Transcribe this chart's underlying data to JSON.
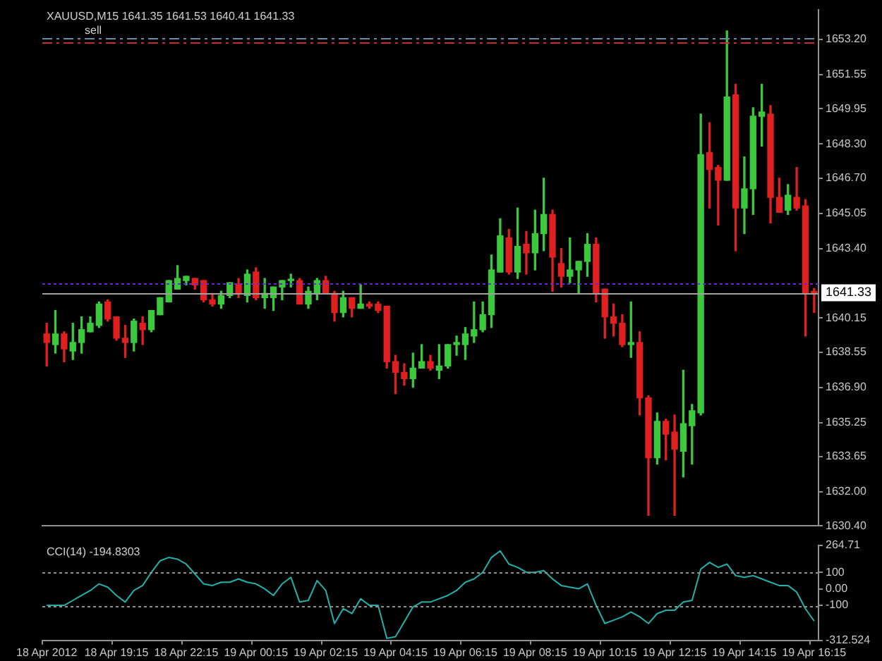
{
  "chart_data": [
    {
      "type": "candlestick",
      "title": "XAUUSD,M15 1641.35 1641.53 1640.41 1641.33",
      "annotations": [
        "sell"
      ],
      "categories": [
        null,
        null,
        null,
        null,
        null,
        null,
        null,
        null,
        null,
        null,
        null,
        null,
        null,
        null,
        null,
        null,
        null,
        null,
        null,
        null,
        null,
        null,
        null,
        null,
        null,
        null,
        null,
        null,
        null,
        null,
        null,
        null,
        null,
        null,
        null,
        null,
        null,
        null,
        null,
        null,
        null,
        null,
        null,
        null,
        null,
        null,
        null,
        null,
        null,
        null,
        null,
        null,
        null,
        null,
        null,
        null,
        null,
        null,
        null,
        null,
        null,
        null,
        null,
        null,
        null,
        null,
        null,
        null,
        null,
        null,
        null,
        null,
        null,
        null,
        null,
        null,
        null,
        null,
        null,
        null,
        null,
        null,
        null,
        null,
        null,
        null,
        null,
        null,
        null
      ],
      "ohlc": [
        [
          1639.4,
          1639.9,
          1637.9,
          1639.0
        ],
        [
          1638.9,
          1640.5,
          1638.5,
          1639.4
        ],
        [
          1639.4,
          1639.5,
          1638.1,
          1638.7
        ],
        [
          1638.6,
          1639.9,
          1638.2,
          1639.0
        ],
        [
          1639.0,
          1640.2,
          1638.5,
          1639.6
        ],
        [
          1639.5,
          1640.2,
          1639.5,
          1639.9
        ],
        [
          1639.8,
          1640.9,
          1639.7,
          1640.8
        ],
        [
          1640.9,
          1641.0,
          1640.0,
          1640.1
        ],
        [
          1640.2,
          1640.2,
          1639.1,
          1639.2
        ],
        [
          1639.2,
          1639.8,
          1638.3,
          1639.0
        ],
        [
          1639.0,
          1640.1,
          1638.6,
          1640.0
        ],
        [
          1639.9,
          1640.2,
          1638.9,
          1639.6
        ],
        [
          1639.6,
          1640.5,
          1639.5,
          1640.5
        ],
        [
          1640.3,
          1641.1,
          1640.3,
          1641.1
        ],
        [
          1640.9,
          1641.9,
          1640.9,
          1641.9
        ],
        [
          1641.5,
          1642.6,
          1641.5,
          1642.0
        ],
        [
          1641.9,
          1642.1,
          1641.7,
          1642.1
        ],
        [
          1642.0,
          1642.0,
          1641.5,
          1641.7
        ],
        [
          1641.9,
          1641.9,
          1640.9,
          1641.0
        ],
        [
          1641.0,
          1641.3,
          1640.7,
          1640.8
        ],
        [
          1640.8,
          1641.4,
          1640.6,
          1641.2
        ],
        [
          1641.2,
          1641.8,
          1641.1,
          1641.8
        ],
        [
          1641.7,
          1642.0,
          1641.1,
          1641.3
        ],
        [
          1641.2,
          1642.4,
          1640.9,
          1642.2
        ],
        [
          1642.3,
          1642.5,
          1641.0,
          1641.1
        ],
        [
          1641.1,
          1642.0,
          1640.6,
          1641.3
        ],
        [
          1641.1,
          1641.6,
          1640.5,
          1641.6
        ],
        [
          1641.6,
          1641.9,
          1641.0,
          1641.9
        ],
        [
          1641.9,
          1642.2,
          1641.6,
          1641.9
        ],
        [
          1641.9,
          1642.0,
          1640.8,
          1640.8
        ],
        [
          1640.8,
          1641.6,
          1640.6,
          1641.4
        ],
        [
          1641.3,
          1642.0,
          1641.0,
          1641.9
        ],
        [
          1641.9,
          1642.1,
          1641.3,
          1641.3
        ],
        [
          1641.3,
          1641.4,
          1640.0,
          1640.4
        ],
        [
          1640.4,
          1641.4,
          1640.2,
          1641.1
        ],
        [
          1641.1,
          1641.1,
          1640.2,
          1640.6
        ],
        [
          1640.6,
          1641.7,
          1640.6,
          1640.8
        ],
        [
          1640.8,
          1640.9,
          1640.6,
          1640.7
        ],
        [
          1640.8,
          1640.9,
          1640.4,
          1640.5
        ],
        [
          1640.7,
          1640.7,
          1637.8,
          1638.1
        ],
        [
          1638.1,
          1638.4,
          1636.6,
          1637.6
        ],
        [
          1637.6,
          1638.0,
          1637.0,
          1637.3
        ],
        [
          1637.3,
          1638.5,
          1636.9,
          1637.8
        ],
        [
          1637.8,
          1638.9,
          1637.8,
          1638.1
        ],
        [
          1638.1,
          1638.4,
          1637.7,
          1637.8
        ],
        [
          1637.7,
          1638.9,
          1637.3,
          1637.9
        ],
        [
          1637.9,
          1638.9,
          1637.8,
          1638.9
        ],
        [
          1638.9,
          1639.3,
          1638.4,
          1639.0
        ],
        [
          1638.9,
          1639.7,
          1638.2,
          1639.4
        ],
        [
          1639.3,
          1640.9,
          1639.0,
          1639.6
        ],
        [
          1639.6,
          1640.9,
          1639.5,
          1640.3
        ],
        [
          1640.3,
          1643.1,
          1639.7,
          1642.4
        ],
        [
          1642.3,
          1644.8,
          1642.3,
          1644.0
        ],
        [
          1643.9,
          1644.3,
          1642.2,
          1642.3
        ],
        [
          1642.3,
          1645.3,
          1642.0,
          1643.5
        ],
        [
          1643.6,
          1644.2,
          1642.2,
          1643.2
        ],
        [
          1643.2,
          1645.2,
          1642.4,
          1644.1
        ],
        [
          1644.1,
          1646.7,
          1643.3,
          1645.0
        ],
        [
          1645.0,
          1645.2,
          1641.4,
          1643.0
        ],
        [
          1642.7,
          1643.4,
          1641.6,
          1642.1
        ],
        [
          1642.1,
          1643.9,
          1641.8,
          1642.4
        ],
        [
          1642.4,
          1642.8,
          1641.3,
          1642.8
        ],
        [
          1642.8,
          1644.1,
          1642.1,
          1643.6
        ],
        [
          1643.6,
          1643.9,
          1640.9,
          1641.3
        ],
        [
          1641.5,
          1641.5,
          1639.2,
          1640.2
        ],
        [
          1640.2,
          1640.8,
          1639.3,
          1639.9
        ],
        [
          1639.9,
          1640.3,
          1638.8,
          1638.9
        ],
        [
          1638.9,
          1640.9,
          1638.3,
          1639.0
        ],
        [
          1639.0,
          1639.5,
          1635.6,
          1636.4
        ],
        [
          1636.4,
          1636.5,
          1630.9,
          1633.6
        ],
        [
          1633.6,
          1635.7,
          1633.3,
          1635.3
        ],
        [
          1635.3,
          1635.4,
          1633.5,
          1634.7
        ],
        [
          1634.8,
          1635.6,
          1630.9,
          1634.0
        ],
        [
          1633.9,
          1637.7,
          1632.7,
          1635.2
        ],
        [
          1635.1,
          1636.1,
          1633.3,
          1635.8
        ],
        [
          1635.7,
          1649.7,
          1635.6,
          1647.8
        ],
        [
          1647.9,
          1649.3,
          1645.3,
          1647.1
        ],
        [
          1647.2,
          1647.3,
          1644.5,
          1646.6
        ],
        [
          1646.6,
          1653.6,
          1646.6,
          1650.5
        ],
        [
          1650.6,
          1651.1,
          1643.3,
          1645.3
        ],
        [
          1645.3,
          1647.7,
          1644.1,
          1646.2
        ],
        [
          1646.2,
          1650.0,
          1645.0,
          1649.6
        ],
        [
          1649.6,
          1651.1,
          1648.2,
          1649.8
        ],
        [
          1649.7,
          1650.1,
          1644.6,
          1645.8
        ],
        [
          1645.8,
          1646.7,
          1645.1,
          1645.1
        ],
        [
          1645.2,
          1646.4,
          1645.0,
          1645.9
        ],
        [
          1645.8,
          1647.2,
          1645.2,
          1645.3
        ],
        [
          1645.4,
          1645.7,
          1639.3,
          1641.3
        ],
        [
          1641.35,
          1641.53,
          1640.41,
          1641.33
        ]
      ],
      "colors": [
        "#e02020",
        "#3cc83c",
        "#e02020",
        "#3cc83c",
        "#3cc83c",
        "#3cc83c",
        "#3cc83c",
        "#e02020",
        "#e02020",
        "#e02020",
        "#3cc83c",
        "#e02020",
        "#3cc83c",
        "#3cc83c",
        "#3cc83c",
        "#3cc83c",
        "#3cc83c",
        "#e02020",
        "#e02020",
        "#e02020",
        "#3cc83c",
        "#3cc83c",
        "#e02020",
        "#3cc83c",
        "#e02020",
        "#3cc83c",
        "#3cc83c",
        "#3cc83c",
        "#3cc83c",
        "#e02020",
        "#3cc83c",
        "#3cc83c",
        "#e02020",
        "#e02020",
        "#3cc83c",
        "#e02020",
        "#3cc83c",
        "#e02020",
        "#e02020",
        "#e02020",
        "#e02020",
        "#e02020",
        "#3cc83c",
        "#3cc83c",
        "#e02020",
        "#3cc83c",
        "#3cc83c",
        "#3cc83c",
        "#3cc83c",
        "#3cc83c",
        "#3cc83c",
        "#3cc83c",
        "#3cc83c",
        "#e02020",
        "#3cc83c",
        "#e02020",
        "#3cc83c",
        "#3cc83c",
        "#e02020",
        "#e02020",
        "#3cc83c",
        "#3cc83c",
        "#3cc83c",
        "#e02020",
        "#e02020",
        "#e02020",
        "#e02020",
        "#3cc83c",
        "#e02020",
        "#e02020",
        "#3cc83c",
        "#e02020",
        "#e02020",
        "#3cc83c",
        "#3cc83c",
        "#3cc83c",
        "#e02020",
        "#e02020",
        "#3cc83c",
        "#e02020",
        "#3cc83c",
        "#3cc83c",
        "#3cc83c",
        "#e02020",
        "#e02020",
        "#3cc83c",
        "#e02020",
        "#e02020",
        "#e02020"
      ],
      "ylim": [
        1630.4,
        1654.6
      ],
      "yticks": [
        {
          "value": 1630.4,
          "label": "1630.40"
        },
        {
          "value": 1632,
          "label": "1632.00"
        },
        1633.65,
        1635.25,
        {
          "value": 1636.9,
          "label": "1636.90"
        },
        1638.55,
        1640.15,
        {
          "value": 1643.4,
          "label": "1643.40"
        },
        1645.05,
        {
          "value": 1646.7,
          "label": "1646.70"
        },
        {
          "value": 1648.3,
          "label": "1648.30"
        },
        1649.95,
        1651.55,
        {
          "value": 1653.2,
          "label": "1653.20"
        }
      ],
      "ref_lines": [
        {
          "axis": "y",
          "value": 1641.33,
          "label": "1641.33",
          "color": "#a0a0a0",
          "line_style": "solid"
        },
        {
          "axis": "y",
          "value": 1641.8,
          "color": "#6a2ac8",
          "line_style": "dotted"
        },
        {
          "axis": "y",
          "value": 1653.27,
          "color": "#6a8aa8",
          "line_style": "dashed"
        },
        {
          "axis": "y",
          "value": 1653.05,
          "color": "#c03030",
          "line_style": "dashed"
        }
      ],
      "grid": false,
      "tick_labels": "y"
    },
    {
      "type": "line",
      "title": "CCI(14) -194.8303",
      "categories": [
        "18 Apr 2012",
        null,
        null,
        null,
        null,
        null,
        null,
        null,
        "18 Apr 19:15",
        null,
        null,
        null,
        null,
        null,
        null,
        null,
        "18 Apr 22:15",
        null,
        null,
        null,
        null,
        null,
        null,
        null,
        "19 Apr 00:15",
        null,
        null,
        null,
        null,
        null,
        null,
        null,
        "19 Apr 02:15",
        null,
        null,
        null,
        null,
        null,
        null,
        null,
        "19 Apr 04:15",
        null,
        null,
        null,
        null,
        null,
        null,
        null,
        "19 Apr 06:15",
        null,
        null,
        null,
        null,
        null,
        null,
        null,
        "19 Apr 08:15",
        null,
        null,
        null,
        null,
        null,
        null,
        null,
        "19 Apr 10:15",
        null,
        null,
        null,
        null,
        null,
        null,
        null,
        "19 Apr 12:15",
        null,
        null,
        null,
        null,
        null,
        null,
        null,
        "19 Apr 14:15",
        null,
        null,
        null,
        null,
        null,
        null,
        null,
        "19 Apr 16:15"
      ],
      "color": "#20b2aa",
      "values": [
        -100,
        -100,
        -100,
        -70,
        -40,
        -10,
        30,
        10,
        -40,
        -80,
        -10,
        20,
        100,
        170,
        190,
        180,
        150,
        90,
        30,
        20,
        40,
        40,
        60,
        40,
        30,
        0,
        -40,
        30,
        70,
        -80,
        -70,
        50,
        -10,
        -210,
        -120,
        -150,
        -60,
        -100,
        -100,
        -300,
        -290,
        -200,
        -110,
        -80,
        -80,
        -60,
        -40,
        -10,
        40,
        60,
        100,
        190,
        230,
        150,
        130,
        100,
        100,
        110,
        60,
        20,
        10,
        0,
        30,
        -100,
        -210,
        -190,
        -170,
        -140,
        -170,
        -210,
        -150,
        -130,
        -130,
        -80,
        -70,
        120,
        160,
        130,
        150,
        80,
        70,
        80,
        60,
        40,
        20,
        20,
        -20,
        -120,
        -194.83
      ],
      "ylim": [
        -312.524,
        264.71
      ],
      "yticks": [
        -312.524,
        -100,
        {
          "value": 0,
          "label": "0.00"
        },
        100,
        264.71
      ],
      "ref_lines": [
        {
          "axis": "y",
          "value": 100,
          "color": "#909090",
          "line_style": "dotted"
        },
        {
          "axis": "y",
          "value": -100,
          "color": "#909090",
          "line_style": "dotted"
        }
      ],
      "grid": false
    }
  ]
}
